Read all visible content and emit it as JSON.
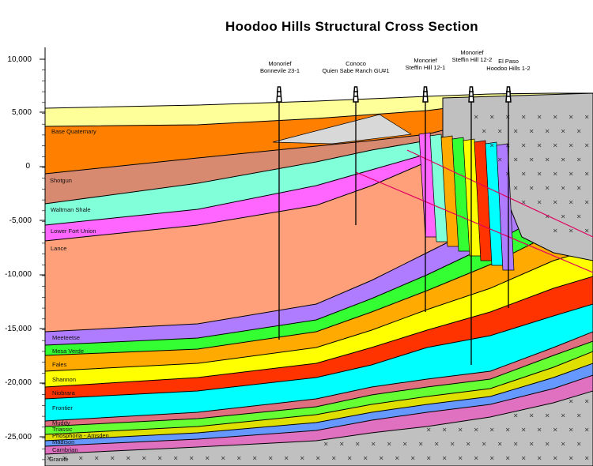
{
  "title": "Hoodoo Hills Structural Cross Section",
  "y_axis": {
    "ticks": [
      "10,000",
      "5,000",
      "0",
      "-5,000",
      "-10,000",
      "-15,000",
      "-20,000",
      "-25,000"
    ]
  },
  "wells": [
    {
      "operator": "Monorief",
      "name": "Bonnevile 23-1"
    },
    {
      "operator": "Conoco",
      "name": "Quien Sabe Ranch GU#1"
    },
    {
      "operator": "Monorief",
      "name": "Steffin Hill 12-1"
    },
    {
      "operator": "Monorief",
      "name": "Steffin Hill 12-2"
    },
    {
      "operator": "El Paso",
      "name": "Hoodoo Hills 1-2"
    }
  ],
  "layers": [
    {
      "name": "",
      "color": "#ffff99"
    },
    {
      "name": "Base Quaternary",
      "color": "#ff8000"
    },
    {
      "name": "Shotgun",
      "color": "#d88a70"
    },
    {
      "name": "Waltman Shale",
      "color": "#80ffd8"
    },
    {
      "name": "Lower Fort Union",
      "color": "#ff66ff"
    },
    {
      "name": "Lance",
      "color": "#ffa07a"
    },
    {
      "name": "Meeteetse",
      "color": "#b07cff"
    },
    {
      "name": "Mesa Verde",
      "color": "#33ff33"
    },
    {
      "name": "Fales",
      "color": "#ffaa00"
    },
    {
      "name": "Shannon",
      "color": "#ffff00"
    },
    {
      "name": "Niobrara",
      "color": "#ff3300"
    },
    {
      "name": "Frontier",
      "color": "#00ffff"
    },
    {
      "name": "Muddy",
      "color": "#e07080"
    },
    {
      "name": "Triassic",
      "color": "#66ff33"
    },
    {
      "name": "Phosphoria - Amsden",
      "color": "#e0e000"
    },
    {
      "name": "Madison",
      "color": "#6699ff"
    },
    {
      "name": "Cambrian",
      "color": "#e070c0"
    },
    {
      "name": "Granite",
      "color": "#c0c0c0"
    }
  ]
}
